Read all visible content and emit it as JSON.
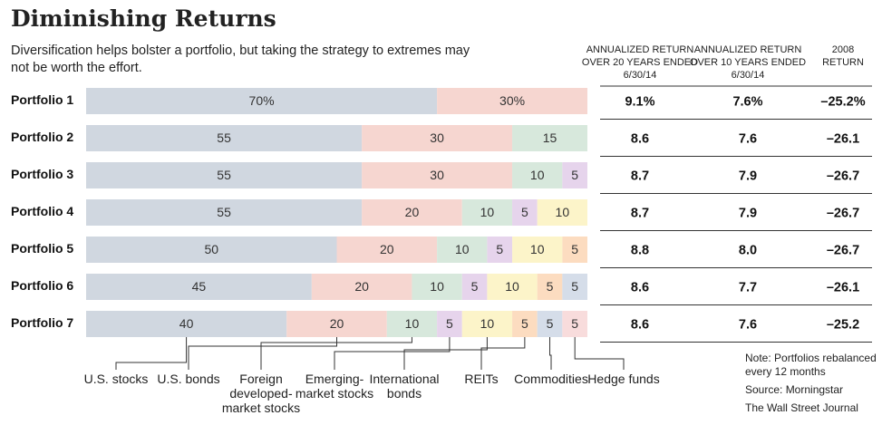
{
  "chart_data": {
    "type": "stacked-bar",
    "title": "Diminishing Returns",
    "subtitle": "Diversification helps bolster a portfolio, but taking the strategy to extremes may not be worth the effort.",
    "categories": [
      "Portfolio 1",
      "Portfolio 2",
      "Portfolio 3",
      "Portfolio 4",
      "Portfolio 5",
      "Portfolio 6",
      "Portfolio 7"
    ],
    "xlim": [
      0,
      100
    ],
    "series": [
      {
        "name": "U.S. stocks",
        "color": "#d0d7e0",
        "values": [
          70,
          55,
          55,
          55,
          50,
          45,
          40
        ],
        "value_labels": [
          "70%",
          "55",
          "55",
          "55",
          "50",
          "45",
          "40"
        ]
      },
      {
        "name": "U.S. bonds",
        "color": "#f6d6d0",
        "values": [
          30,
          30,
          30,
          20,
          20,
          20,
          20
        ],
        "value_labels": [
          "30%",
          "30",
          "30",
          "20",
          "20",
          "20",
          "20"
        ]
      },
      {
        "name": "Foreign developed-market stocks",
        "color": "#d7e8dc",
        "values": [
          null,
          15,
          10,
          10,
          10,
          10,
          10
        ]
      },
      {
        "name": "Emerging-market stocks",
        "color": "#e6d4ec",
        "values": [
          null,
          null,
          5,
          5,
          5,
          5,
          5
        ]
      },
      {
        "name": "International bonds",
        "color": "#fcf4c9",
        "values": [
          null,
          null,
          null,
          10,
          10,
          10,
          10
        ]
      },
      {
        "name": "REITs",
        "color": "#fcdcc0",
        "values": [
          null,
          null,
          null,
          null,
          5,
          5,
          5
        ]
      },
      {
        "name": "Commodities",
        "color": "#d5dde9",
        "values": [
          null,
          null,
          null,
          null,
          null,
          5,
          5
        ]
      },
      {
        "name": "Hedge funds",
        "color": "#f8dcdc",
        "values": [
          null,
          null,
          null,
          null,
          null,
          null,
          5
        ]
      }
    ]
  },
  "table": {
    "columns": [
      "ANNUALIZED RETURN OVER 20 YEARS ENDED 6/30/14",
      "ANNUALIZED RETURN OVER 10 YEARS ENDED 6/30/14",
      "2008 RETURN"
    ],
    "rows": [
      [
        "9.1%",
        "7.6%",
        "–25.2%"
      ],
      [
        "8.6",
        "7.6",
        "–26.1"
      ],
      [
        "8.7",
        "7.9",
        "–26.7"
      ],
      [
        "8.7",
        "7.9",
        "–26.7"
      ],
      [
        "8.8",
        "8.0",
        "–26.7"
      ],
      [
        "8.6",
        "7.7",
        "–26.1"
      ],
      [
        "8.6",
        "7.6",
        "–25.2"
      ]
    ]
  },
  "notes": [
    "Note: Portfolios rebalanced every 12 months",
    "Source: Morningstar",
    "The Wall Street Journal"
  ]
}
